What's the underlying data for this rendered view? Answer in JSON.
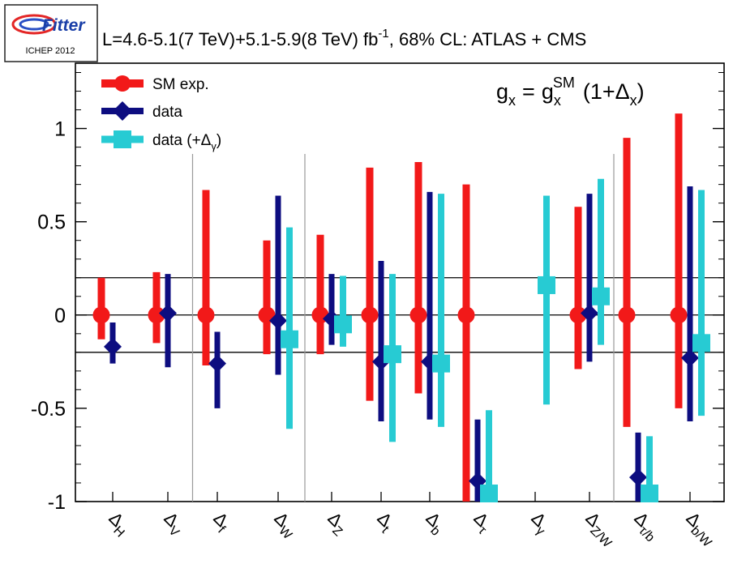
{
  "header": {
    "logo_text": "Fitter",
    "logo_caption": "ICHEP 2012",
    "lumi_text": "L=4.6-5.1(7 TeV)+5.1-5.9(8 TeV) fb",
    "lumi_exp": "-1",
    "lumi_rest": ", 68% CL: ATLAS + CMS"
  },
  "formula": {
    "lhs": "g",
    "lhs_sub": "x",
    "eq": "=",
    "rhs": "g",
    "rhs_sub": "x",
    "rhs_sup": "SM",
    "open": "(1+",
    "delta": "Δ",
    "delta_sub": "x",
    "close": ")"
  },
  "chart_data": {
    "type": "errorbar",
    "categories": [
      {
        "delta": "Δ",
        "sub": "H"
      },
      {
        "delta": "Δ",
        "sub": "V"
      },
      {
        "delta": "Δ",
        "sub": "f"
      },
      {
        "delta": "Δ",
        "sub": "W"
      },
      {
        "delta": "Δ",
        "sub": "Z"
      },
      {
        "delta": "Δ",
        "sub": "t"
      },
      {
        "delta": "Δ",
        "sub": "b"
      },
      {
        "delta": "Δ",
        "sub": "τ"
      },
      {
        "delta": "Δ",
        "sub": "γ"
      },
      {
        "delta": "Δ",
        "sub": "Z/W"
      },
      {
        "delta": "Δ",
        "sub": "τ/b"
      },
      {
        "delta": "Δ",
        "sub": "b/W"
      }
    ],
    "ylim": [
      -1,
      1.35
    ],
    "yticks": [
      -1,
      -0.5,
      0,
      0.5,
      1
    ],
    "ytick_labels": [
      "-1",
      "-0.5",
      "0",
      "0.5",
      "1"
    ],
    "hlines": [
      0.2,
      0,
      -0.2
    ],
    "group_separators_after": [
      1,
      3,
      9
    ],
    "series": [
      {
        "name": "SM exp.",
        "color": "#f21919",
        "marker": "circle",
        "points": [
          {
            "cat": 0,
            "val": 0,
            "lo": -0.13,
            "hi": 0.2
          },
          {
            "cat": 1,
            "val": 0,
            "lo": -0.15,
            "hi": 0.23
          },
          {
            "cat": 2,
            "val": 0,
            "lo": -0.27,
            "hi": 0.67
          },
          {
            "cat": 3,
            "val": 0,
            "lo": -0.21,
            "hi": 0.4
          },
          {
            "cat": 4,
            "val": 0,
            "lo": -0.21,
            "hi": 0.43
          },
          {
            "cat": 5,
            "val": 0,
            "lo": -0.46,
            "hi": 0.79
          },
          {
            "cat": 6,
            "val": 0,
            "lo": -0.42,
            "hi": 0.82
          },
          {
            "cat": 7,
            "val": 0,
            "lo": -1.0,
            "hi": 0.7
          },
          {
            "cat": 9,
            "val": 0,
            "lo": -0.29,
            "hi": 0.58
          },
          {
            "cat": 10,
            "val": 0,
            "lo": -0.6,
            "hi": 0.95
          },
          {
            "cat": 11,
            "val": 0,
            "lo": -0.5,
            "hi": 1.08
          }
        ]
      },
      {
        "name": "data",
        "color": "#0d0d80",
        "marker": "diamond",
        "points": [
          {
            "cat": 0,
            "val": -0.17,
            "lo": -0.26,
            "hi": -0.04
          },
          {
            "cat": 1,
            "val": 0.01,
            "lo": -0.28,
            "hi": 0.22
          },
          {
            "cat": 2,
            "val": -0.26,
            "lo": -0.5,
            "hi": -0.09
          },
          {
            "cat": 3,
            "val": -0.03,
            "lo": -0.32,
            "hi": 0.64
          },
          {
            "cat": 4,
            "val": -0.02,
            "lo": -0.16,
            "hi": 0.22
          },
          {
            "cat": 5,
            "val": -0.25,
            "lo": -0.57,
            "hi": 0.29
          },
          {
            "cat": 6,
            "val": -0.25,
            "lo": -0.56,
            "hi": 0.66
          },
          {
            "cat": 7,
            "val": -0.89,
            "lo": -1.0,
            "hi": -0.56
          },
          {
            "cat": 9,
            "val": 0.01,
            "lo": -0.25,
            "hi": 0.65
          },
          {
            "cat": 10,
            "val": -0.87,
            "lo": -1.0,
            "hi": -0.63
          },
          {
            "cat": 11,
            "val": -0.23,
            "lo": -0.57,
            "hi": 0.69
          }
        ]
      },
      {
        "name": "data (+Δ",
        "name_sub": "γ",
        "name_close": ")",
        "color": "#27cbd3",
        "marker": "square",
        "points": [
          {
            "cat": 3,
            "val": -0.13,
            "lo": -0.61,
            "hi": 0.47
          },
          {
            "cat": 4,
            "val": -0.05,
            "lo": -0.17,
            "hi": 0.21
          },
          {
            "cat": 5,
            "val": -0.21,
            "lo": -0.68,
            "hi": 0.22
          },
          {
            "cat": 6,
            "val": -0.26,
            "lo": -0.6,
            "hi": 0.65
          },
          {
            "cat": 7,
            "val": -0.98,
            "lo": -1.0,
            "hi": -0.51
          },
          {
            "cat": 8,
            "val": 0.16,
            "lo": -0.48,
            "hi": 0.64
          },
          {
            "cat": 9,
            "val": 0.1,
            "lo": -0.16,
            "hi": 0.73
          },
          {
            "cat": 10,
            "val": -0.98,
            "lo": -1.0,
            "hi": -0.65
          },
          {
            "cat": 11,
            "val": -0.15,
            "lo": -0.54,
            "hi": 0.67
          }
        ]
      }
    ]
  }
}
